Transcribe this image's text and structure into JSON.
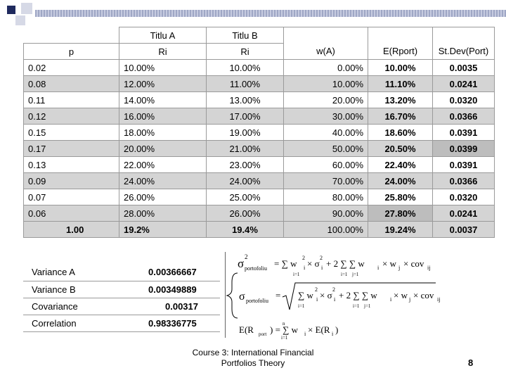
{
  "table": {
    "group_headers": [
      "Titlu A",
      "Titlu B"
    ],
    "col_headers": [
      "p",
      "Ri",
      "Ri",
      "w(A)",
      "E(Rport)",
      "St.Dev(Port)"
    ],
    "rows": [
      [
        "0.02",
        "10.00%",
        "10.00%",
        "0.00%",
        "10.00%",
        "0.0035"
      ],
      [
        "0.08",
        "12.00%",
        "11.00%",
        "10.00%",
        "11.10%",
        "0.0241"
      ],
      [
        "0.11",
        "14.00%",
        "13.00%",
        "20.00%",
        "13.20%",
        "0.0320"
      ],
      [
        "0.12",
        "16.00%",
        "17.00%",
        "30.00%",
        "16.70%",
        "0.0366"
      ],
      [
        "0.15",
        "18.00%",
        "19.00%",
        "40.00%",
        "18.60%",
        "0.0391"
      ],
      [
        "0.17",
        "20.00%",
        "21.00%",
        "50.00%",
        "20.50%",
        "0.0399"
      ],
      [
        "0.13",
        "22.00%",
        "23.00%",
        "60.00%",
        "22.40%",
        "0.0391"
      ],
      [
        "0.09",
        "24.00%",
        "24.00%",
        "70.00%",
        "24.00%",
        "0.0366"
      ],
      [
        "0.07",
        "26.00%",
        "25.00%",
        "80.00%",
        "25.80%",
        "0.0320"
      ],
      [
        "0.06",
        "28.00%",
        "26.00%",
        "90.00%",
        "27.80%",
        "0.0241"
      ]
    ],
    "total_row": [
      "1.00",
      "19.2%",
      "19.4%",
      "100.00%",
      "19.24%",
      "0.0037"
    ]
  },
  "stats": [
    {
      "label": "Variance A",
      "value": "0.00366667"
    },
    {
      "label": "Variance B",
      "value": "0.00349889"
    },
    {
      "label": "Covariance",
      "value": "0.00317"
    },
    {
      "label": "Correlation",
      "value": "0.98336775"
    }
  ],
  "formulas": {
    "sigma2_sub": "portofoliu",
    "sigma_sub": "portofoliu",
    "sigma_sym": "σ",
    "er_left": "E(R",
    "er_sub": "port",
    "sum_upper": "n",
    "sum_lower_i": "i=1",
    "sum_lower_j": "j=1"
  },
  "footer": {
    "line1": "Course 3: International Financial",
    "line2": "Portfolios Theory",
    "page": "8"
  }
}
